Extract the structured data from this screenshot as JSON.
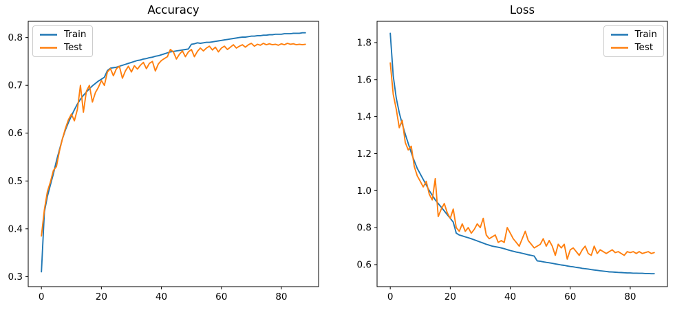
{
  "figure": {
    "background": "#ffffff",
    "text_color": "#000000",
    "spine_color": "#000000"
  },
  "chart_data": [
    {
      "type": "line",
      "title": "Accuracy",
      "xlabel": "",
      "ylabel": "",
      "grid": false,
      "legend_position": "upper-left",
      "xlim": [
        -4.4,
        92.4
      ],
      "ylim": [
        0.279,
        0.834
      ],
      "xticks": [
        "0",
        "20",
        "40",
        "60",
        "80"
      ],
      "yticks": [
        "0.3",
        "0.4",
        "0.5",
        "0.6",
        "0.7",
        "0.8"
      ],
      "x": [
        0,
        1,
        2,
        3,
        4,
        5,
        6,
        7,
        8,
        9,
        10,
        11,
        12,
        13,
        14,
        15,
        16,
        17,
        18,
        19,
        20,
        21,
        22,
        23,
        24,
        25,
        26,
        27,
        28,
        29,
        30,
        31,
        32,
        33,
        34,
        35,
        36,
        37,
        38,
        39,
        40,
        41,
        42,
        43,
        44,
        45,
        46,
        47,
        48,
        49,
        50,
        51,
        52,
        53,
        54,
        55,
        56,
        57,
        58,
        59,
        60,
        61,
        62,
        63,
        64,
        65,
        66,
        67,
        68,
        69,
        70,
        71,
        72,
        73,
        74,
        75,
        76,
        77,
        78,
        79,
        80,
        81,
        82,
        83,
        84,
        85,
        86,
        87,
        88
      ],
      "series": [
        {
          "name": "Train",
          "color": "#1f77b4",
          "values": [
            0.31,
            0.435,
            0.468,
            0.492,
            0.515,
            0.542,
            0.565,
            0.588,
            0.607,
            0.622,
            0.636,
            0.649,
            0.661,
            0.671,
            0.679,
            0.686,
            0.693,
            0.699,
            0.704,
            0.709,
            0.713,
            0.717,
            0.731,
            0.736,
            0.737,
            0.738,
            0.74,
            0.742,
            0.744,
            0.746,
            0.748,
            0.75,
            0.752,
            0.753,
            0.755,
            0.756,
            0.758,
            0.759,
            0.761,
            0.762,
            0.764,
            0.766,
            0.768,
            0.77,
            0.771,
            0.772,
            0.773,
            0.774,
            0.775,
            0.776,
            0.786,
            0.787,
            0.789,
            0.788,
            0.789,
            0.79,
            0.79,
            0.791,
            0.792,
            0.793,
            0.794,
            0.795,
            0.796,
            0.797,
            0.798,
            0.799,
            0.8,
            0.801,
            0.801,
            0.802,
            0.803,
            0.803,
            0.804,
            0.804,
            0.805,
            0.805,
            0.806,
            0.806,
            0.807,
            0.807,
            0.807,
            0.808,
            0.808,
            0.808,
            0.809,
            0.809,
            0.809,
            0.81,
            0.81
          ]
        },
        {
          "name": "Test",
          "color": "#ff7f0e",
          "values": [
            0.385,
            0.44,
            0.478,
            0.498,
            0.522,
            0.53,
            0.562,
            0.588,
            0.61,
            0.628,
            0.64,
            0.626,
            0.65,
            0.7,
            0.644,
            0.688,
            0.7,
            0.665,
            0.685,
            0.696,
            0.71,
            0.7,
            0.728,
            0.735,
            0.72,
            0.735,
            0.74,
            0.715,
            0.73,
            0.74,
            0.728,
            0.741,
            0.734,
            0.742,
            0.748,
            0.735,
            0.746,
            0.75,
            0.73,
            0.745,
            0.752,
            0.756,
            0.76,
            0.775,
            0.77,
            0.755,
            0.765,
            0.772,
            0.76,
            0.77,
            0.775,
            0.76,
            0.771,
            0.778,
            0.772,
            0.778,
            0.782,
            0.774,
            0.78,
            0.77,
            0.778,
            0.782,
            0.775,
            0.78,
            0.785,
            0.778,
            0.782,
            0.785,
            0.78,
            0.785,
            0.788,
            0.782,
            0.786,
            0.784,
            0.788,
            0.785,
            0.787,
            0.785,
            0.786,
            0.784,
            0.787,
            0.785,
            0.788,
            0.786,
            0.787,
            0.785,
            0.786,
            0.785,
            0.786
          ]
        }
      ]
    },
    {
      "type": "line",
      "title": "Loss",
      "xlabel": "",
      "ylabel": "",
      "grid": false,
      "legend_position": "upper-right",
      "xlim": [
        -4.4,
        92.4
      ],
      "ylim": [
        0.481,
        1.915
      ],
      "xticks": [
        "0",
        "20",
        "40",
        "60",
        "80"
      ],
      "yticks": [
        "0.6",
        "0.8",
        "1.0",
        "1.2",
        "1.4",
        "1.6",
        "1.8"
      ],
      "x": [
        0,
        1,
        2,
        3,
        4,
        5,
        6,
        7,
        8,
        9,
        10,
        11,
        12,
        13,
        14,
        15,
        16,
        17,
        18,
        19,
        20,
        21,
        22,
        23,
        24,
        25,
        26,
        27,
        28,
        29,
        30,
        31,
        32,
        33,
        34,
        35,
        36,
        37,
        38,
        39,
        40,
        41,
        42,
        43,
        44,
        45,
        46,
        47,
        48,
        49,
        50,
        51,
        52,
        53,
        54,
        55,
        56,
        57,
        58,
        59,
        60,
        61,
        62,
        63,
        64,
        65,
        66,
        67,
        68,
        69,
        70,
        71,
        72,
        73,
        74,
        75,
        76,
        77,
        78,
        79,
        80,
        81,
        82,
        83,
        84,
        85,
        86,
        87,
        88
      ],
      "series": [
        {
          "name": "Train",
          "color": "#1f77b4",
          "values": [
            1.85,
            1.62,
            1.5,
            1.42,
            1.36,
            1.305,
            1.255,
            1.205,
            1.16,
            1.12,
            1.09,
            1.06,
            1.03,
            1.0,
            0.975,
            0.95,
            0.93,
            0.91,
            0.89,
            0.87,
            0.85,
            0.83,
            0.77,
            0.76,
            0.755,
            0.75,
            0.745,
            0.74,
            0.734,
            0.728,
            0.722,
            0.716,
            0.71,
            0.705,
            0.7,
            0.697,
            0.694,
            0.69,
            0.686,
            0.681,
            0.676,
            0.672,
            0.668,
            0.665,
            0.661,
            0.657,
            0.653,
            0.65,
            0.646,
            0.62,
            0.618,
            0.615,
            0.612,
            0.61,
            0.607,
            0.604,
            0.601,
            0.598,
            0.596,
            0.593,
            0.59,
            0.588,
            0.585,
            0.583,
            0.58,
            0.578,
            0.576,
            0.573,
            0.571,
            0.569,
            0.567,
            0.565,
            0.563,
            0.561,
            0.56,
            0.559,
            0.558,
            0.557,
            0.556,
            0.555,
            0.555,
            0.554,
            0.554,
            0.553,
            0.553,
            0.552,
            0.552,
            0.551,
            0.551
          ]
        },
        {
          "name": "Test",
          "color": "#ff7f0e",
          "values": [
            1.69,
            1.52,
            1.44,
            1.34,
            1.38,
            1.26,
            1.22,
            1.24,
            1.13,
            1.08,
            1.05,
            1.02,
            1.05,
            0.98,
            0.95,
            1.065,
            0.86,
            0.9,
            0.93,
            0.88,
            0.85,
            0.9,
            0.8,
            0.78,
            0.82,
            0.78,
            0.8,
            0.77,
            0.79,
            0.82,
            0.8,
            0.85,
            0.76,
            0.74,
            0.75,
            0.76,
            0.72,
            0.73,
            0.72,
            0.8,
            0.77,
            0.74,
            0.72,
            0.7,
            0.74,
            0.78,
            0.73,
            0.71,
            0.69,
            0.7,
            0.71,
            0.74,
            0.7,
            0.73,
            0.7,
            0.65,
            0.71,
            0.69,
            0.71,
            0.63,
            0.68,
            0.69,
            0.67,
            0.65,
            0.68,
            0.7,
            0.66,
            0.65,
            0.7,
            0.66,
            0.68,
            0.67,
            0.66,
            0.67,
            0.68,
            0.665,
            0.67,
            0.66,
            0.65,
            0.67,
            0.665,
            0.67,
            0.66,
            0.67,
            0.66,
            0.665,
            0.67,
            0.66,
            0.665
          ]
        }
      ]
    }
  ]
}
